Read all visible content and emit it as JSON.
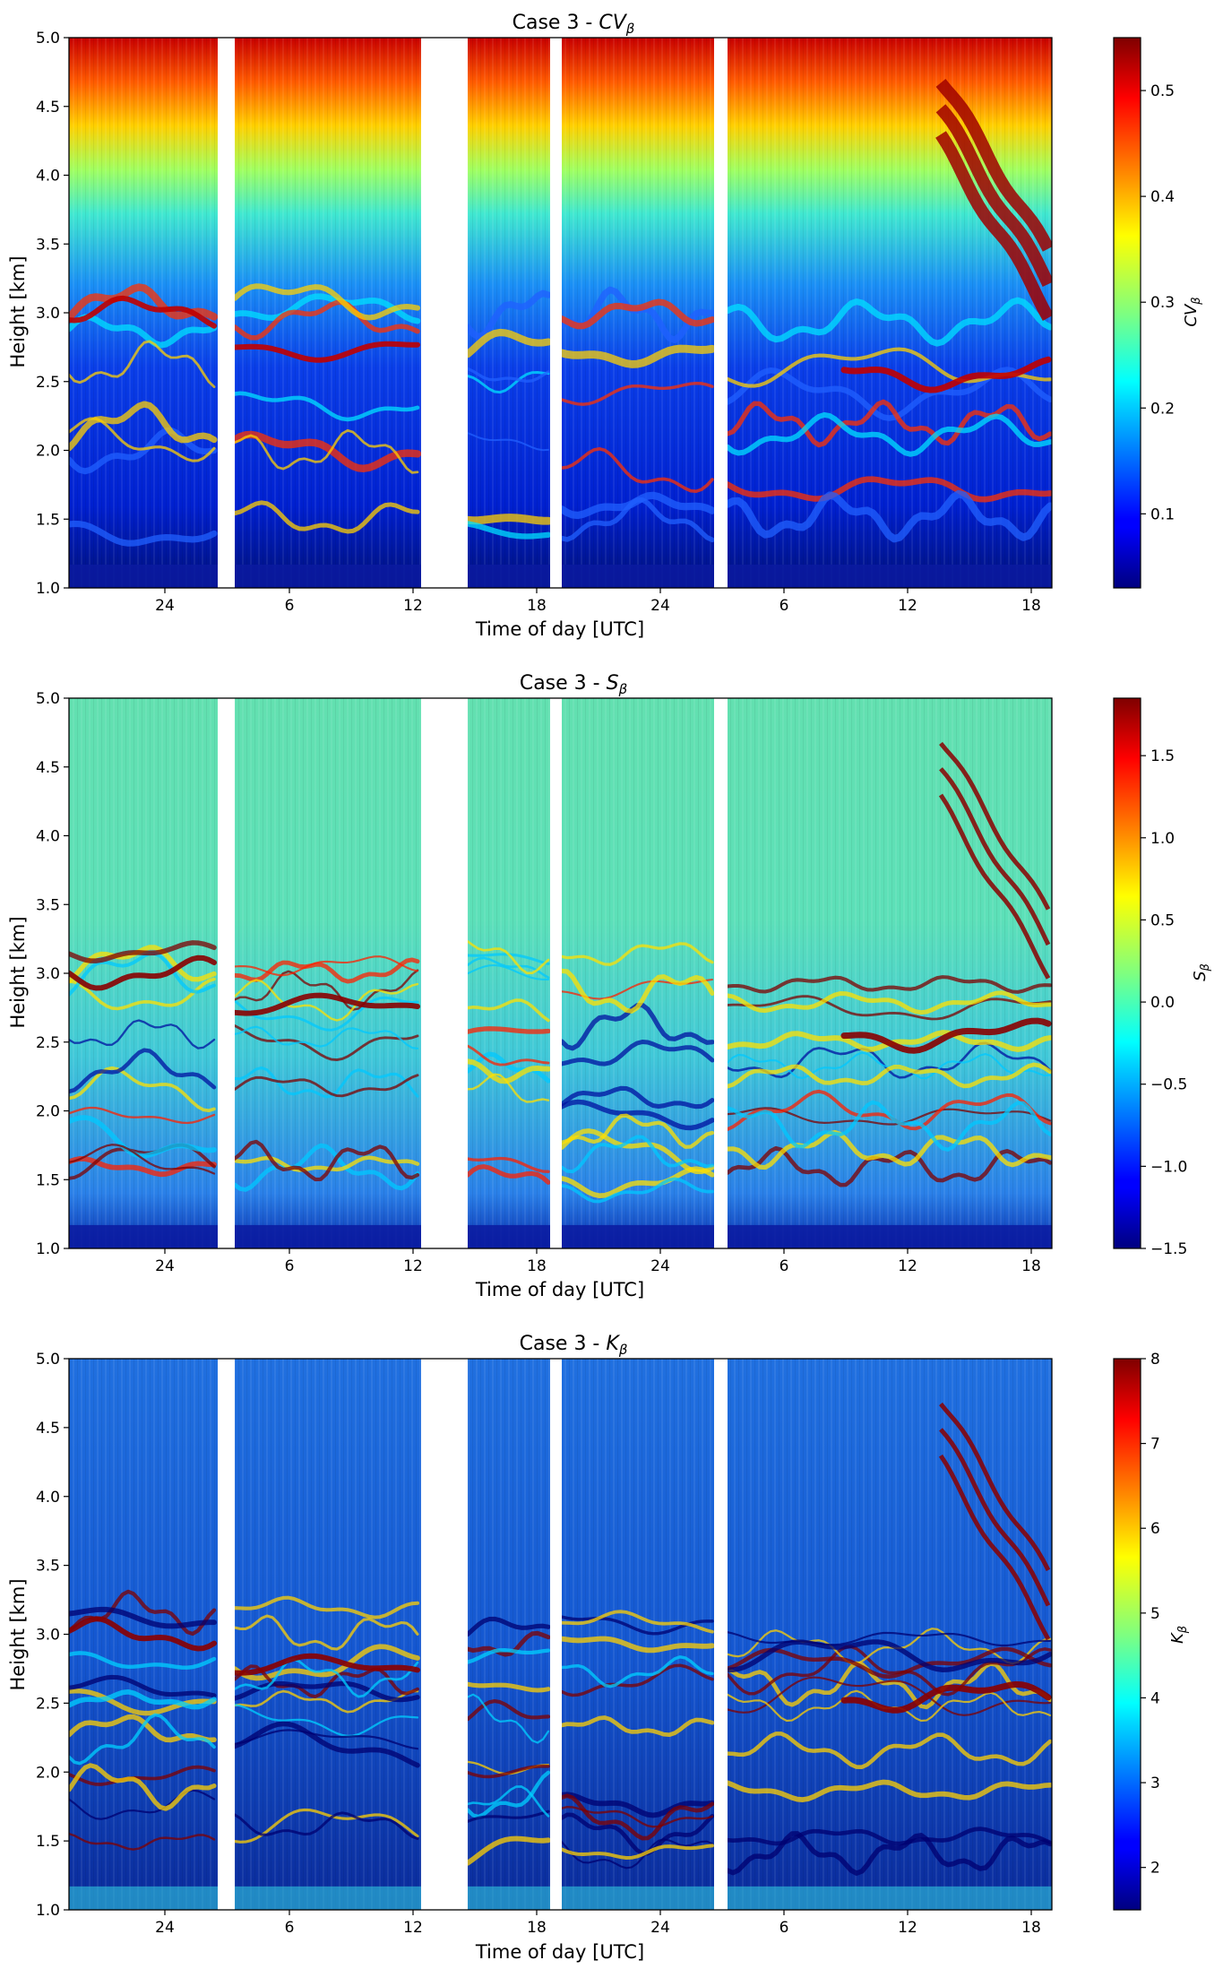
{
  "panel_common": {
    "xlabel": "Time of day [UTC]",
    "ylabel": "Height [km]",
    "x_tick_labels": [
      "24",
      "6",
      "12",
      "18",
      "24",
      "6",
      "12",
      "18"
    ],
    "y_tick_labels": [
      "1.0",
      "1.5",
      "2.0",
      "2.5",
      "3.0",
      "3.5",
      "4.0",
      "4.5",
      "5.0"
    ]
  },
  "chart_data": [
    {
      "type": "heatmap",
      "title_prefix": "Case 3 - ",
      "title_var": "CV",
      "title_sub": "β",
      "xlabel": "Time of day [UTC]",
      "ylabel": "Height [km]",
      "ylim": [
        1.0,
        5.0
      ],
      "colorbar_label_var": "CV",
      "colorbar_label_sub": "β",
      "colorbar_ticks": [
        "0.1",
        "0.2",
        "0.3",
        "0.4",
        "0.5"
      ],
      "colorbar_tick_values": [
        0.1,
        0.2,
        0.3,
        0.4,
        0.5
      ],
      "colorbar_range": [
        0.03,
        0.55
      ],
      "colormap": "jet"
    },
    {
      "type": "heatmap",
      "title_prefix": "Case 3 - ",
      "title_var": "S",
      "title_sub": "β",
      "xlabel": "Time of day [UTC]",
      "ylabel": "Height [km]",
      "ylim": [
        1.0,
        5.0
      ],
      "colorbar_label_var": "S",
      "colorbar_label_sub": "β",
      "colorbar_ticks": [
        "1.5",
        "1.0",
        "0.5",
        "0.0",
        "−0.5",
        "−1.0",
        "−1.5"
      ],
      "colorbar_tick_values": [
        1.5,
        1.0,
        0.5,
        0.0,
        -0.5,
        -1.0,
        -1.5
      ],
      "colorbar_range": [
        -1.5,
        1.85
      ],
      "colormap": "jet"
    },
    {
      "type": "heatmap",
      "title_prefix": "Case 3 - ",
      "title_var": "K",
      "title_sub": "β",
      "xlabel": "Time of day [UTC]",
      "ylabel": "Height [km]",
      "ylim": [
        1.0,
        5.0
      ],
      "colorbar_label_var": "K",
      "colorbar_label_sub": "β",
      "colorbar_ticks": [
        "8",
        "7",
        "6",
        "5",
        "4",
        "3",
        "2"
      ],
      "colorbar_tick_values": [
        8,
        7,
        6,
        5,
        4,
        3,
        2
      ],
      "colorbar_range": [
        1.5,
        8
      ],
      "colormap": "jet"
    }
  ]
}
